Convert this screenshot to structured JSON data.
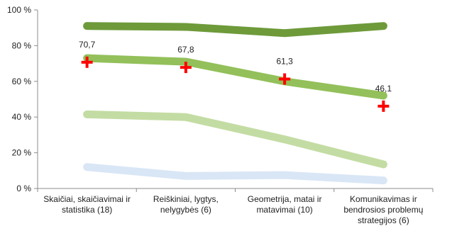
{
  "chart_data": {
    "type": "line",
    "categories": [
      [
        "Skaičiai, skaičiavimai ir",
        "statistika (18)"
      ],
      [
        "Reiškiniai, lygtys,",
        "nelygybės (6)"
      ],
      [
        "Geometrija, matai ir",
        "matavimai (10)"
      ],
      [
        "Komunikavimas ir",
        "bendrosios problemų",
        "strategijos (6)"
      ]
    ],
    "ylim": [
      0,
      100
    ],
    "yticks": [
      0,
      20,
      40,
      60,
      80,
      100
    ],
    "ytick_labels": [
      "0 %",
      "20 %",
      "40 %",
      "60 %",
      "80 %",
      "100 %"
    ],
    "grid": false,
    "series": [
      {
        "values": [
          91,
          90.5,
          87,
          91
        ],
        "color": "#6e9a3a",
        "width": 11
      },
      {
        "values": [
          73,
          71,
          60,
          52
        ],
        "color": "#93c05a",
        "width": 11
      },
      {
        "values": [
          41.5,
          40,
          27.5,
          13.5
        ],
        "color": "#c3dca3",
        "width": 11
      },
      {
        "values": [
          12,
          7,
          7.5,
          4.5
        ],
        "color": "#d9e6f6",
        "width": 11
      }
    ],
    "markers": {
      "symbol": "cross",
      "color": "#ff0000",
      "values": [
        70.7,
        67.8,
        61.3,
        46.1
      ],
      "labels": [
        "70,7",
        "67,8",
        "61,3",
        "46,1"
      ]
    }
  }
}
